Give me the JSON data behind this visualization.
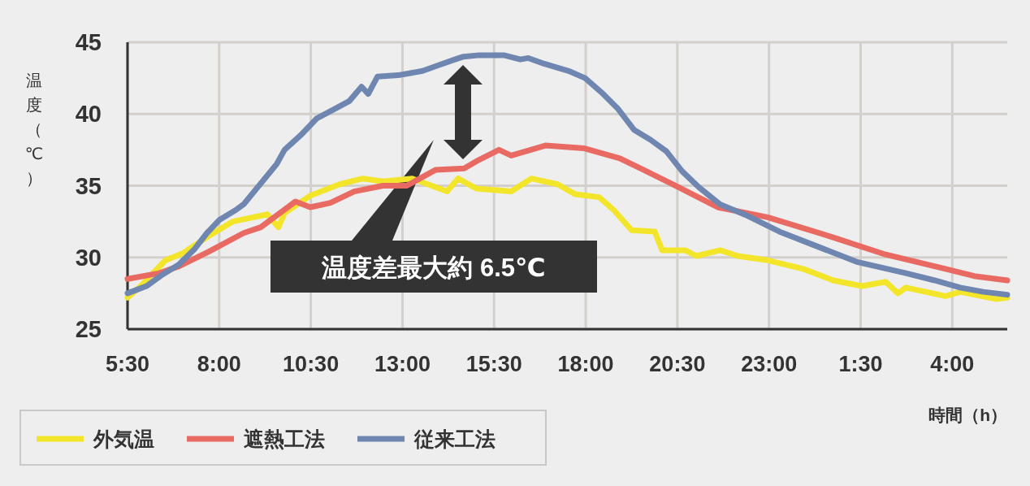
{
  "chart_data": {
    "type": "line",
    "xlabel": "時間（h）",
    "ylabel": "温度（℃）",
    "xlim": [
      "2000-01-01T05:30",
      "2000-01-02T05:30"
    ],
    "xticks": [
      {
        "value": "2000-01-01T05:30",
        "label": "5:30"
      },
      {
        "value": "2000-01-01T08:00",
        "label": "8:00"
      },
      {
        "value": "2000-01-01T10:30",
        "label": "10:30"
      },
      {
        "value": "2000-01-01T13:00",
        "label": "13:00"
      },
      {
        "value": "2000-01-01T15:30",
        "label": "15:30"
      },
      {
        "value": "2000-01-01T18:00",
        "label": "18:00"
      },
      {
        "value": "2000-01-01T20:30",
        "label": "20:30"
      },
      {
        "value": "2000-01-01T23:00",
        "label": "23:00"
      },
      {
        "value": "2000-01-02T01:30",
        "label": "1:30"
      },
      {
        "value": "2000-01-02T04:00",
        "label": "4:00"
      }
    ],
    "ylim": [
      25,
      45
    ],
    "yticks": [
      25,
      30,
      35,
      40,
      45
    ],
    "grid": true,
    "legend": "bottom left",
    "line_style": "solid",
    "marker": "none",
    "annotations": [
      "温度差最大約 6.5℃"
    ],
    "series": [
      {
        "name": "外気温",
        "color": "#f2e52a",
        "x": [
          "2000-01-01T05:30",
          "2000-01-01T05:49",
          "2000-01-01T06:32",
          "2000-01-01T07:01",
          "2000-01-01T07:43",
          "2000-01-01T08:22",
          "2000-01-01T09:19",
          "2000-01-01T09:37",
          "2000-01-01T09:47",
          "2000-01-01T10:29",
          "2000-01-01T11:17",
          "2000-01-01T11:55",
          "2000-01-01T12:28",
          "2000-01-01T13:16",
          "2000-01-01T14:13",
          "2000-01-01T14:31",
          "2000-01-01T15:01",
          "2000-01-01T15:58",
          "2000-01-01T16:31",
          "2000-01-01T17:14",
          "2000-01-01T17:43",
          "2000-01-01T18:22",
          "2000-01-01T18:46",
          "2000-01-01T19:15",
          "2000-01-01T19:53",
          "2000-01-01T20:05",
          "2000-01-01T20:43",
          "2000-01-01T21:01",
          "2000-01-01T21:40",
          "2000-01-01T22:09",
          "2000-01-01T22:58",
          "2000-01-01T23:56",
          "2000-01-02T00:45",
          "2000-01-02T01:32",
          "2000-01-02T02:11",
          "2000-01-02T02:31",
          "2000-01-02T02:44",
          "2000-01-02T03:49",
          "2000-01-02T04:13",
          "2000-01-02T05:11",
          "2000-01-02T05:30"
        ],
        "values": [
          27.2,
          27.9,
          29.8,
          30.3,
          31.5,
          32.5,
          33.0,
          32.1,
          33.1,
          34.3,
          35.1,
          35.5,
          35.3,
          35.5,
          34.6,
          35.5,
          34.8,
          34.6,
          35.5,
          35.1,
          34.4,
          34.2,
          33.3,
          31.9,
          31.8,
          30.5,
          30.5,
          30.1,
          30.5,
          30.1,
          29.8,
          29.2,
          28.4,
          28.0,
          28.3,
          27.5,
          27.9,
          27.3,
          27.6,
          27.1,
          27.2
        ]
      },
      {
        "name": "遮熱工法",
        "color": "#e86a63",
        "x": [
          "2000-01-01T05:30",
          "2000-01-01T06:22",
          "2000-01-01T06:55",
          "2000-01-01T07:43",
          "2000-01-01T08:40",
          "2000-01-01T09:08",
          "2000-01-01T10:05",
          "2000-01-01T10:29",
          "2000-01-01T11:02",
          "2000-01-01T11:41",
          "2000-01-01T12:28",
          "2000-01-01T13:07",
          "2000-01-01T13:54",
          "2000-01-01T14:41",
          "2000-01-01T15:01",
          "2000-01-01T15:38",
          "2000-01-01T15:58",
          "2000-01-01T16:54",
          "2000-01-01T17:58",
          "2000-01-01T18:56",
          "2000-01-01T19:35",
          "2000-01-01T20:32",
          "2000-01-01T21:36",
          "2000-01-01T22:58",
          "2000-01-02T00:45",
          "2000-01-02T02:11",
          "2000-01-02T03:49",
          "2000-01-02T04:36",
          "2000-01-02T05:30"
        ],
        "values": [
          28.5,
          28.9,
          29.4,
          30.4,
          31.7,
          32.1,
          33.9,
          33.5,
          33.8,
          34.6,
          35.0,
          35.0,
          36.1,
          36.2,
          36.7,
          37.5,
          37.1,
          37.8,
          37.6,
          36.9,
          36.1,
          34.9,
          33.5,
          32.8,
          31.4,
          30.2,
          29.2,
          28.7,
          28.4
        ]
      },
      {
        "name": "従来工法",
        "color": "#6f86b0",
        "x": [
          "2000-01-01T05:30",
          "2000-01-01T06:01",
          "2000-01-01T06:27",
          "2000-01-01T06:54",
          "2000-01-01T07:20",
          "2000-01-01T07:40",
          "2000-01-01T08:00",
          "2000-01-01T08:27",
          "2000-01-01T08:40",
          "2000-01-01T09:07",
          "2000-01-01T09:34",
          "2000-01-01T09:47",
          "2000-01-01T10:13",
          "2000-01-01T10:40",
          "2000-01-01T11:07",
          "2000-01-01T11:33",
          "2000-01-01T11:53",
          "2000-01-01T12:04",
          "2000-01-01T12:19",
          "2000-01-01T12:53",
          "2000-01-01T13:33",
          "2000-01-01T13:59",
          "2000-01-01T14:26",
          "2000-01-01T14:40",
          "2000-01-01T15:06",
          "2000-01-01T15:46",
          "2000-01-01T16:13",
          "2000-01-01T16:26",
          "2000-01-01T16:52",
          "2000-01-01T17:32",
          "2000-01-01T17:59",
          "2000-01-01T18:26",
          "2000-01-01T18:52",
          "2000-01-01T19:19",
          "2000-01-01T19:46",
          "2000-01-01T20:12",
          "2000-01-01T20:38",
          "2000-01-01T21:05",
          "2000-01-01T21:40",
          "2000-01-01T22:25",
          "2000-01-01T23:17",
          "2000-01-02T00:11",
          "2000-01-02T01:23",
          "2000-01-02T02:44",
          "2000-01-02T03:31",
          "2000-01-02T04:13",
          "2000-01-02T04:51",
          "2000-01-02T05:30"
        ],
        "values": [
          27.5,
          28.0,
          28.8,
          29.5,
          30.6,
          31.7,
          32.6,
          33.3,
          33.7,
          35.1,
          36.5,
          37.5,
          38.5,
          39.7,
          40.3,
          40.9,
          41.9,
          41.4,
          42.6,
          42.7,
          43.0,
          43.4,
          43.8,
          44.0,
          44.1,
          44.1,
          43.8,
          43.9,
          43.5,
          43.0,
          42.5,
          41.5,
          40.4,
          38.9,
          38.2,
          37.4,
          36.0,
          34.9,
          33.7,
          32.9,
          31.8,
          30.9,
          29.7,
          28.9,
          28.4,
          27.9,
          27.6,
          27.4
        ]
      }
    ]
  }
}
